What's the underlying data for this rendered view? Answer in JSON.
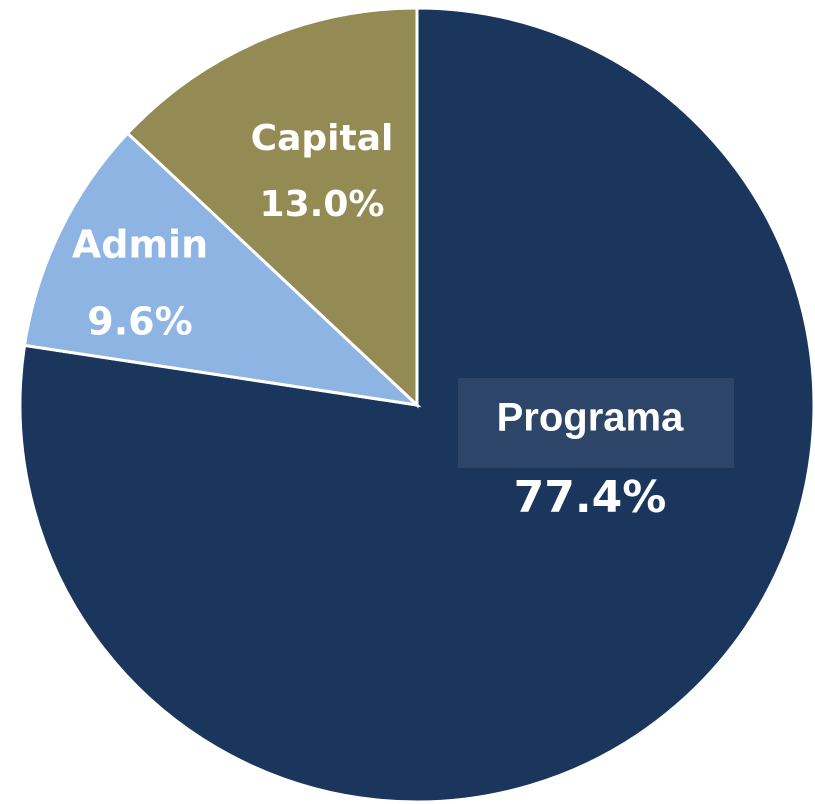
{
  "chart_data": {
    "type": "pie",
    "categories": [
      "Programa",
      "Admin",
      "Capital"
    ],
    "values": [
      77.4,
      9.6,
      13.0
    ],
    "value_labels": [
      "77.4%",
      "9.6%",
      "13.0%"
    ],
    "colors": [
      "#1b365d",
      "#8eb4e3",
      "#948a54"
    ]
  }
}
